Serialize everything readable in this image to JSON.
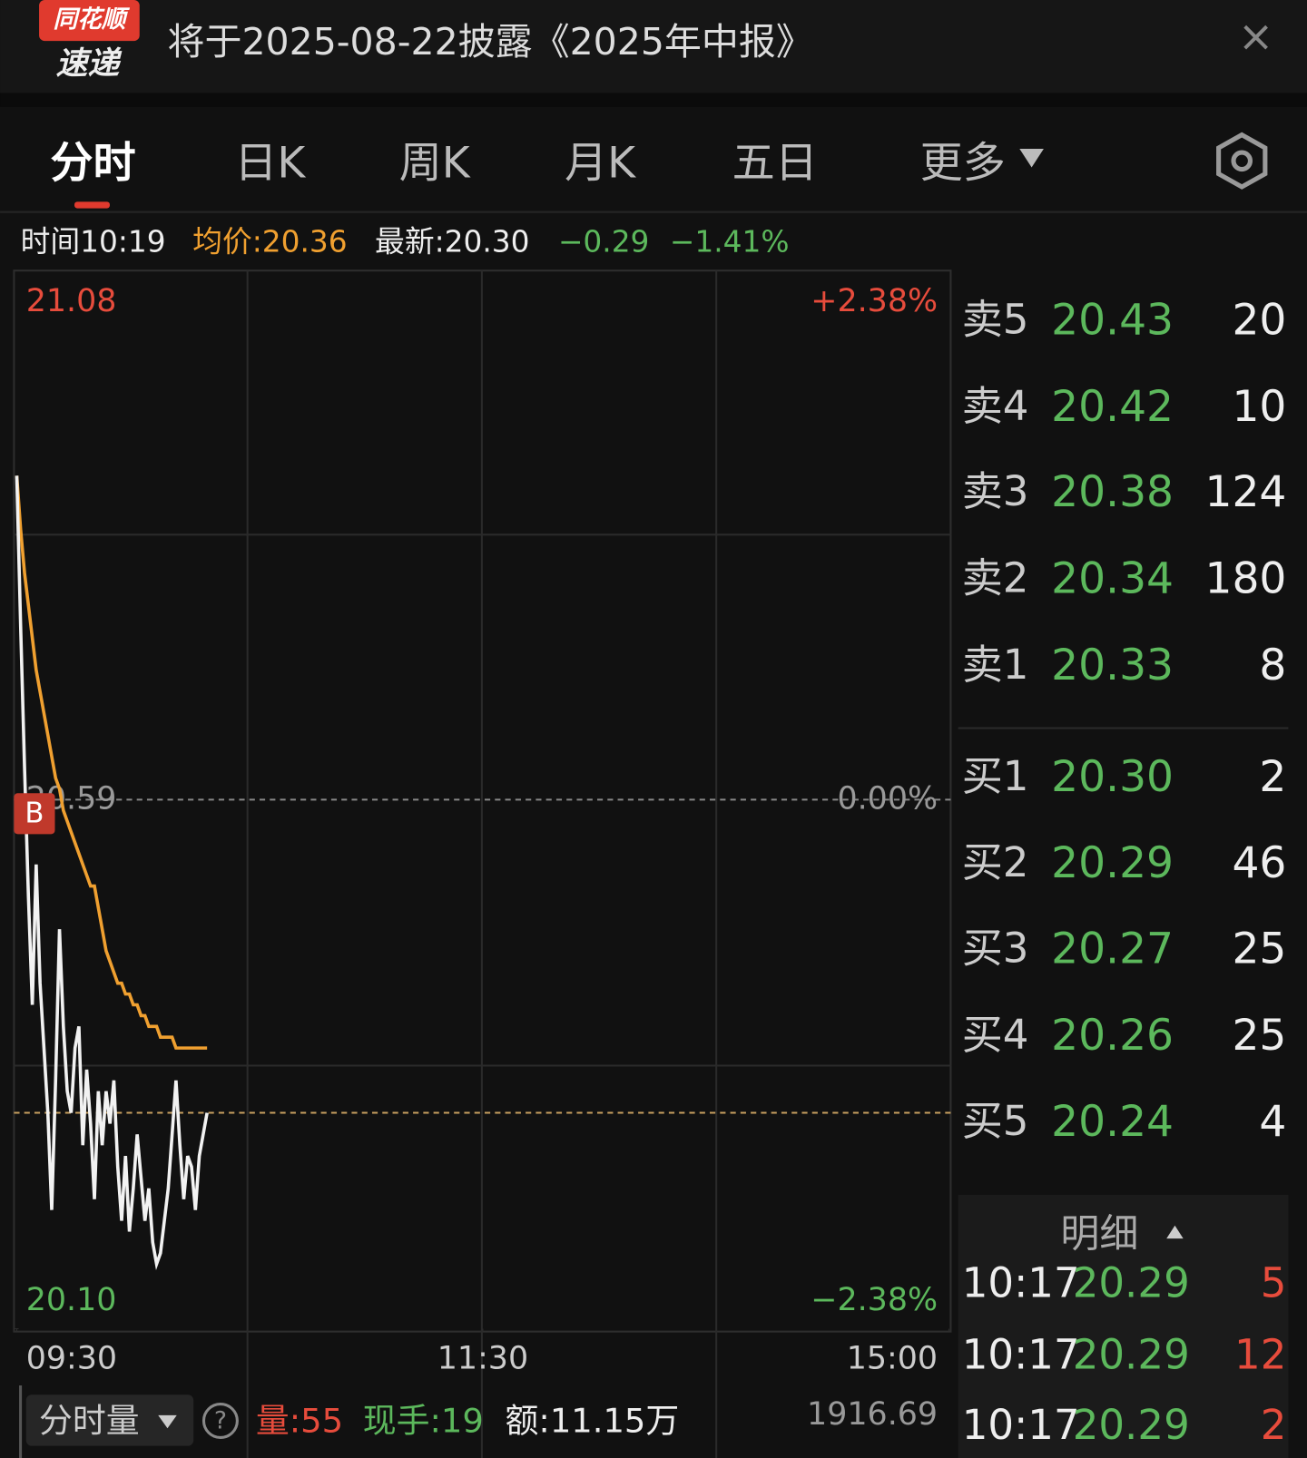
{
  "header": {
    "logo_top": "同花顺",
    "logo_bottom": "速递",
    "title": "将于2025-08-22披露《2025年中报》",
    "close": "×"
  },
  "tabs": [
    "分时",
    "日K",
    "周K",
    "月K",
    "五日",
    "更多"
  ],
  "info": {
    "time_label": "时间",
    "time": "10:19",
    "avg_label": "均价:",
    "avg": 20.36,
    "latest_label": "最新:",
    "latest": {
      "value": 20.3,
      "label": "20.30"
    },
    "change": "−0.29",
    "change_pct": "−1.41%"
  },
  "chart_data": {
    "type": "line",
    "ylim": [
      20.1,
      21.08
    ],
    "yticks": [
      {
        "value": 21.08,
        "label": "21.08"
      },
      {
        "value": 20.59,
        "label": "20.59"
      },
      {
        "value": 20.1,
        "label": "20.10"
      }
    ],
    "pct_labels": [
      "+2.38%",
      "0.00%",
      "−2.38%"
    ],
    "xlim": [
      0,
      240
    ],
    "xticks": [
      {
        "value": 0,
        "label": "09:30"
      },
      {
        "value": 120,
        "label": "11:30"
      },
      {
        "value": 240,
        "label": "15:00"
      }
    ],
    "buy_marker": {
      "label": "B",
      "price": 20.54
    },
    "series": [
      {
        "color": "#f2f2f2",
        "values": [
          20.89,
          20.75,
          20.62,
          20.5,
          20.4,
          20.53,
          20.42,
          20.36,
          20.3,
          20.21,
          20.33,
          20.47,
          20.38,
          20.32,
          20.3,
          20.36,
          20.38,
          20.27,
          20.34,
          20.29,
          20.22,
          20.32,
          20.27,
          20.32,
          20.29,
          20.33,
          20.25,
          20.2,
          20.26,
          20.19,
          20.23,
          20.28,
          20.24,
          20.2,
          20.23,
          20.18,
          20.16,
          20.17,
          20.2,
          20.23,
          20.28,
          20.33,
          20.27,
          20.22,
          20.26,
          20.25,
          20.21,
          20.26,
          20.28,
          20.3
        ]
      },
      {
        "color": "#f0a030",
        "values": [
          20.89,
          20.84,
          20.8,
          20.77,
          20.74,
          20.71,
          20.69,
          20.67,
          20.65,
          20.63,
          20.61,
          20.6,
          20.58,
          20.57,
          20.56,
          20.55,
          20.54,
          20.53,
          20.52,
          20.51,
          20.51,
          20.49,
          20.47,
          20.45,
          20.44,
          20.43,
          20.42,
          20.42,
          20.41,
          20.41,
          20.4,
          20.4,
          20.39,
          20.39,
          20.38,
          20.38,
          20.38,
          20.37,
          20.37,
          20.37,
          20.37,
          20.36,
          20.36,
          20.36,
          20.36,
          20.36,
          20.36,
          20.36,
          20.36,
          20.36
        ]
      }
    ]
  },
  "order_book": {
    "asks": [
      [
        "卖5",
        "20.43",
        20
      ],
      [
        "卖4",
        "20.42",
        10
      ],
      [
        "卖3",
        "20.38",
        124
      ],
      [
        "卖2",
        "20.34",
        180
      ],
      [
        "卖1",
        "20.33",
        8
      ]
    ],
    "bids": [
      [
        "买1",
        "20.30",
        2
      ],
      [
        "买2",
        "20.29",
        46
      ],
      [
        "买3",
        "20.27",
        25
      ],
      [
        "买4",
        "20.26",
        25
      ],
      [
        "买5",
        "20.24",
        4
      ]
    ]
  },
  "details": {
    "title": "明细",
    "rows": [
      [
        "10:17",
        "20.29",
        5
      ],
      [
        "10:17",
        "20.29",
        12
      ],
      [
        "10:17",
        "20.29",
        2
      ]
    ]
  },
  "bottom": {
    "selector": "分时量",
    "help": "?",
    "vol": "量:55",
    "hand": "现手:19",
    "amount": "额:11.15万",
    "max": "1916.69"
  }
}
